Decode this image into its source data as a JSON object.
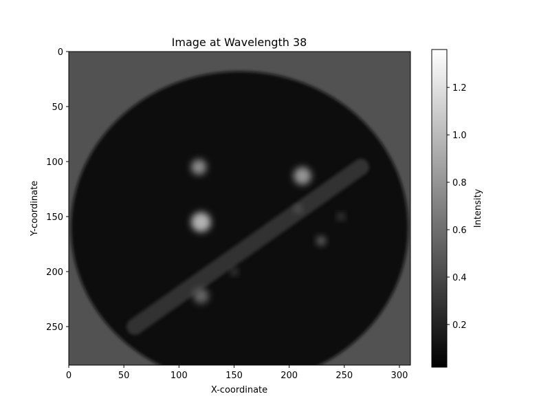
{
  "chart_data": {
    "type": "heatmap",
    "title": "Image at Wavelength 38",
    "xlabel": "X-coordinate",
    "ylabel": "Y-coordinate",
    "xlim": [
      0,
      310
    ],
    "ylim": [
      285,
      0
    ],
    "x_ticks": [
      0,
      50,
      100,
      150,
      200,
      250,
      300
    ],
    "y_ticks": [
      0,
      50,
      100,
      150,
      200,
      250
    ],
    "colormap": "gray",
    "colorbar": {
      "label": "Intensity",
      "range": [
        0.02,
        1.36
      ],
      "ticks": [
        0.2,
        0.4,
        0.6,
        0.8,
        1.0,
        1.2
      ]
    },
    "image_features": {
      "background_level": 0.45,
      "dark_disk": {
        "center_x": 155,
        "center_y": 160,
        "radius_x": 153,
        "radius_y": 142,
        "level": 0.09
      },
      "bright_spots": [
        {
          "x": 118,
          "y": 105,
          "radius": 7,
          "level": 0.75
        },
        {
          "x": 212,
          "y": 113,
          "radius": 8,
          "level": 0.8
        },
        {
          "x": 120,
          "y": 155,
          "radius": 9,
          "level": 0.95
        },
        {
          "x": 120,
          "y": 222,
          "radius": 7,
          "level": 0.55
        },
        {
          "x": 208,
          "y": 143,
          "radius": 3,
          "level": 0.55
        },
        {
          "x": 229,
          "y": 172,
          "radius": 4,
          "level": 0.6
        },
        {
          "x": 247,
          "y": 150,
          "radius": 3,
          "level": 0.45
        },
        {
          "x": 150,
          "y": 200,
          "radius": 3,
          "level": 0.45
        }
      ],
      "diagonal_band": {
        "x1": 60,
        "y1": 250,
        "x2": 265,
        "y2": 105,
        "width": 15,
        "level": 0.28
      }
    }
  }
}
